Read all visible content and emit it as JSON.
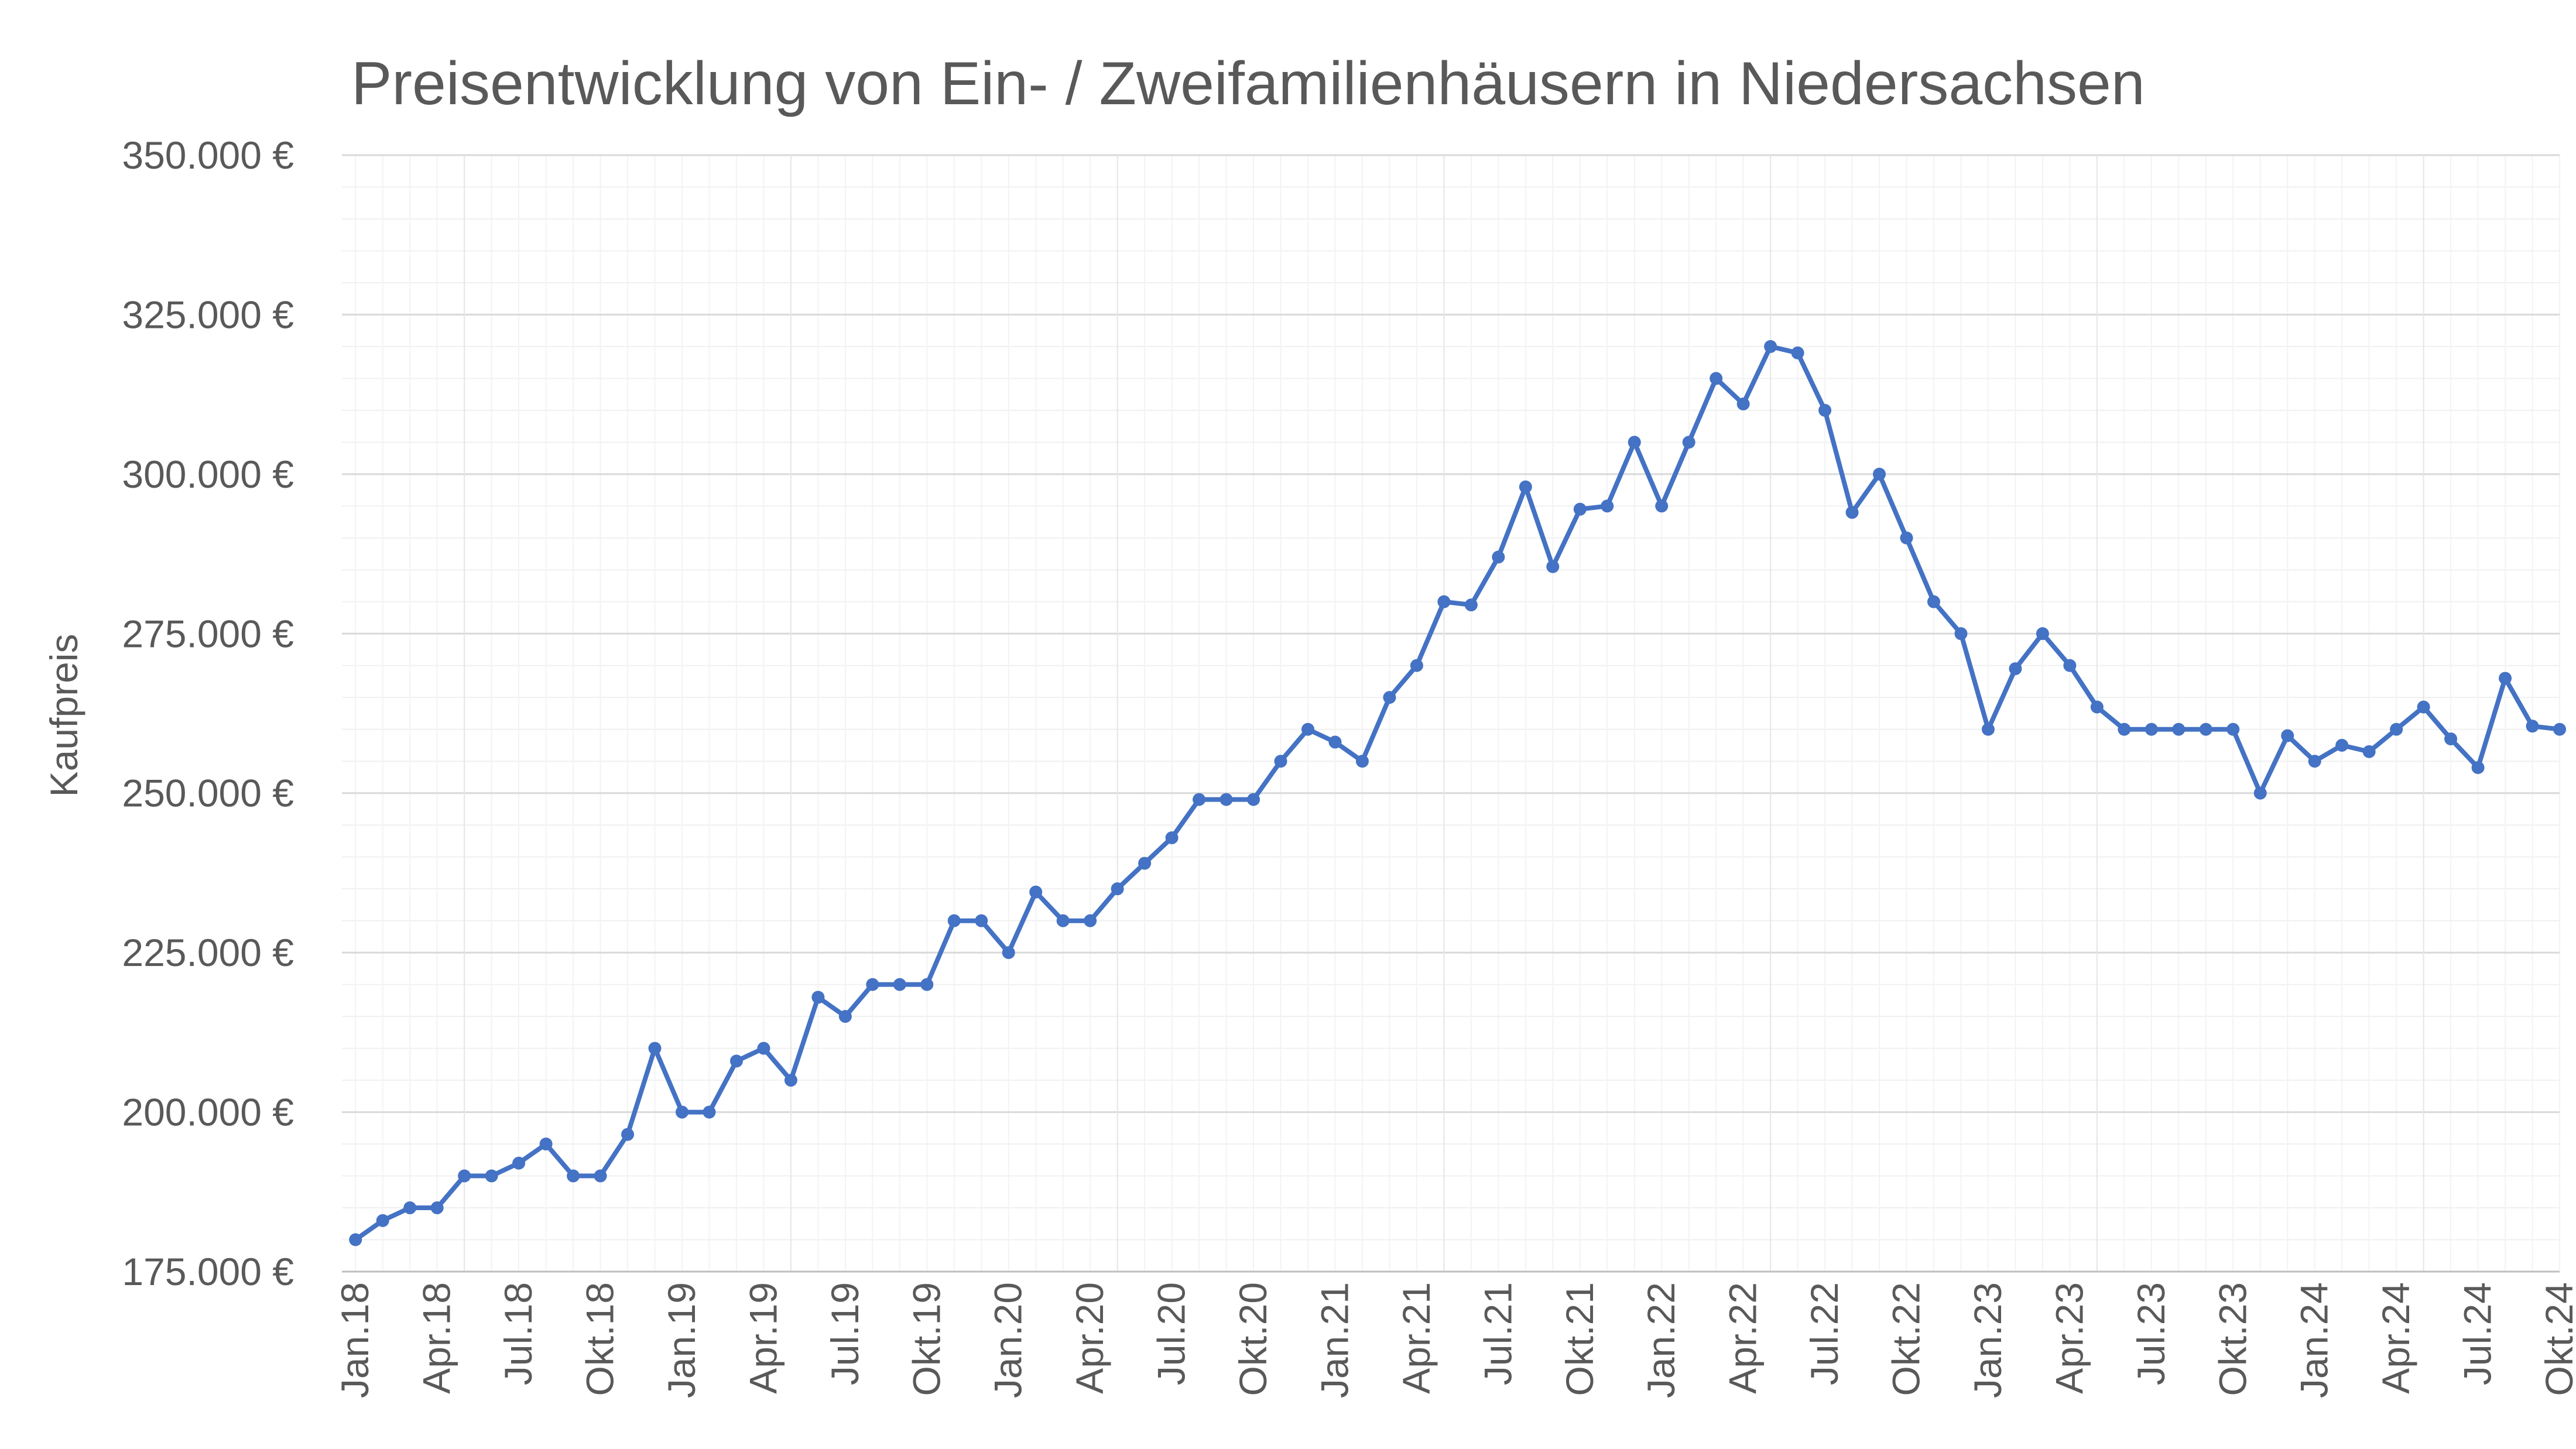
{
  "chart_data": {
    "type": "line",
    "title": "Preisentwicklung von Ein- / Zweifamilienhäusern in Niedersachsen",
    "xlabel": "",
    "ylabel": "Kaufpreis",
    "ylim": [
      175000,
      350000
    ],
    "y_ticks": [
      175000,
      200000,
      225000,
      250000,
      275000,
      300000,
      325000,
      350000
    ],
    "y_tick_labels": [
      "175.000 €",
      "200.000 €",
      "225.000 €",
      "250.000 €",
      "275.000 €",
      "300.000 €",
      "325.000 €",
      "350.000 €"
    ],
    "x_tick_labels": [
      "Jan.18",
      "Apr.18",
      "Jul.18",
      "Okt.18",
      "Jan.19",
      "Apr.19",
      "Jul.19",
      "Okt.19",
      "Jan.20",
      "Apr.20",
      "Jul.20",
      "Okt.20",
      "Jan.21",
      "Apr.21",
      "Jul.21",
      "Okt.21",
      "Jan.22",
      "Apr.22",
      "Jul.22",
      "Okt.22",
      "Jan.23",
      "Apr.23",
      "Jul.23",
      "Okt.23",
      "Jan.24",
      "Apr.24",
      "Jul.24",
      "Okt.24"
    ],
    "grid": true,
    "line_color": "#4472C4",
    "series": [
      {
        "values": [
          180000,
          183000,
          185000,
          185000,
          190000,
          190000,
          192000,
          195000,
          190000,
          190000,
          196500,
          210000,
          200000,
          200000,
          208000,
          210000,
          205000,
          218000,
          215000,
          220000,
          220000,
          220000,
          230000,
          230000,
          225000,
          234500,
          230000,
          230000,
          235000,
          239000,
          243000,
          249000,
          249000,
          249000,
          255000,
          260000,
          258000,
          255000,
          265000,
          270000,
          280000,
          279500,
          287000,
          298000,
          285500,
          294500,
          295000,
          305000,
          295000,
          305000,
          315000,
          311000,
          320000,
          319000,
          310000,
          294000,
          300000,
          290000,
          280000,
          275000,
          260000,
          269500,
          275000,
          270000,
          263500,
          260000,
          260000,
          260000,
          260000,
          260000,
          250000,
          259000,
          255000,
          257500,
          256500,
          260000,
          263500,
          258500,
          254000,
          268000,
          260500,
          260000
        ]
      }
    ]
  }
}
